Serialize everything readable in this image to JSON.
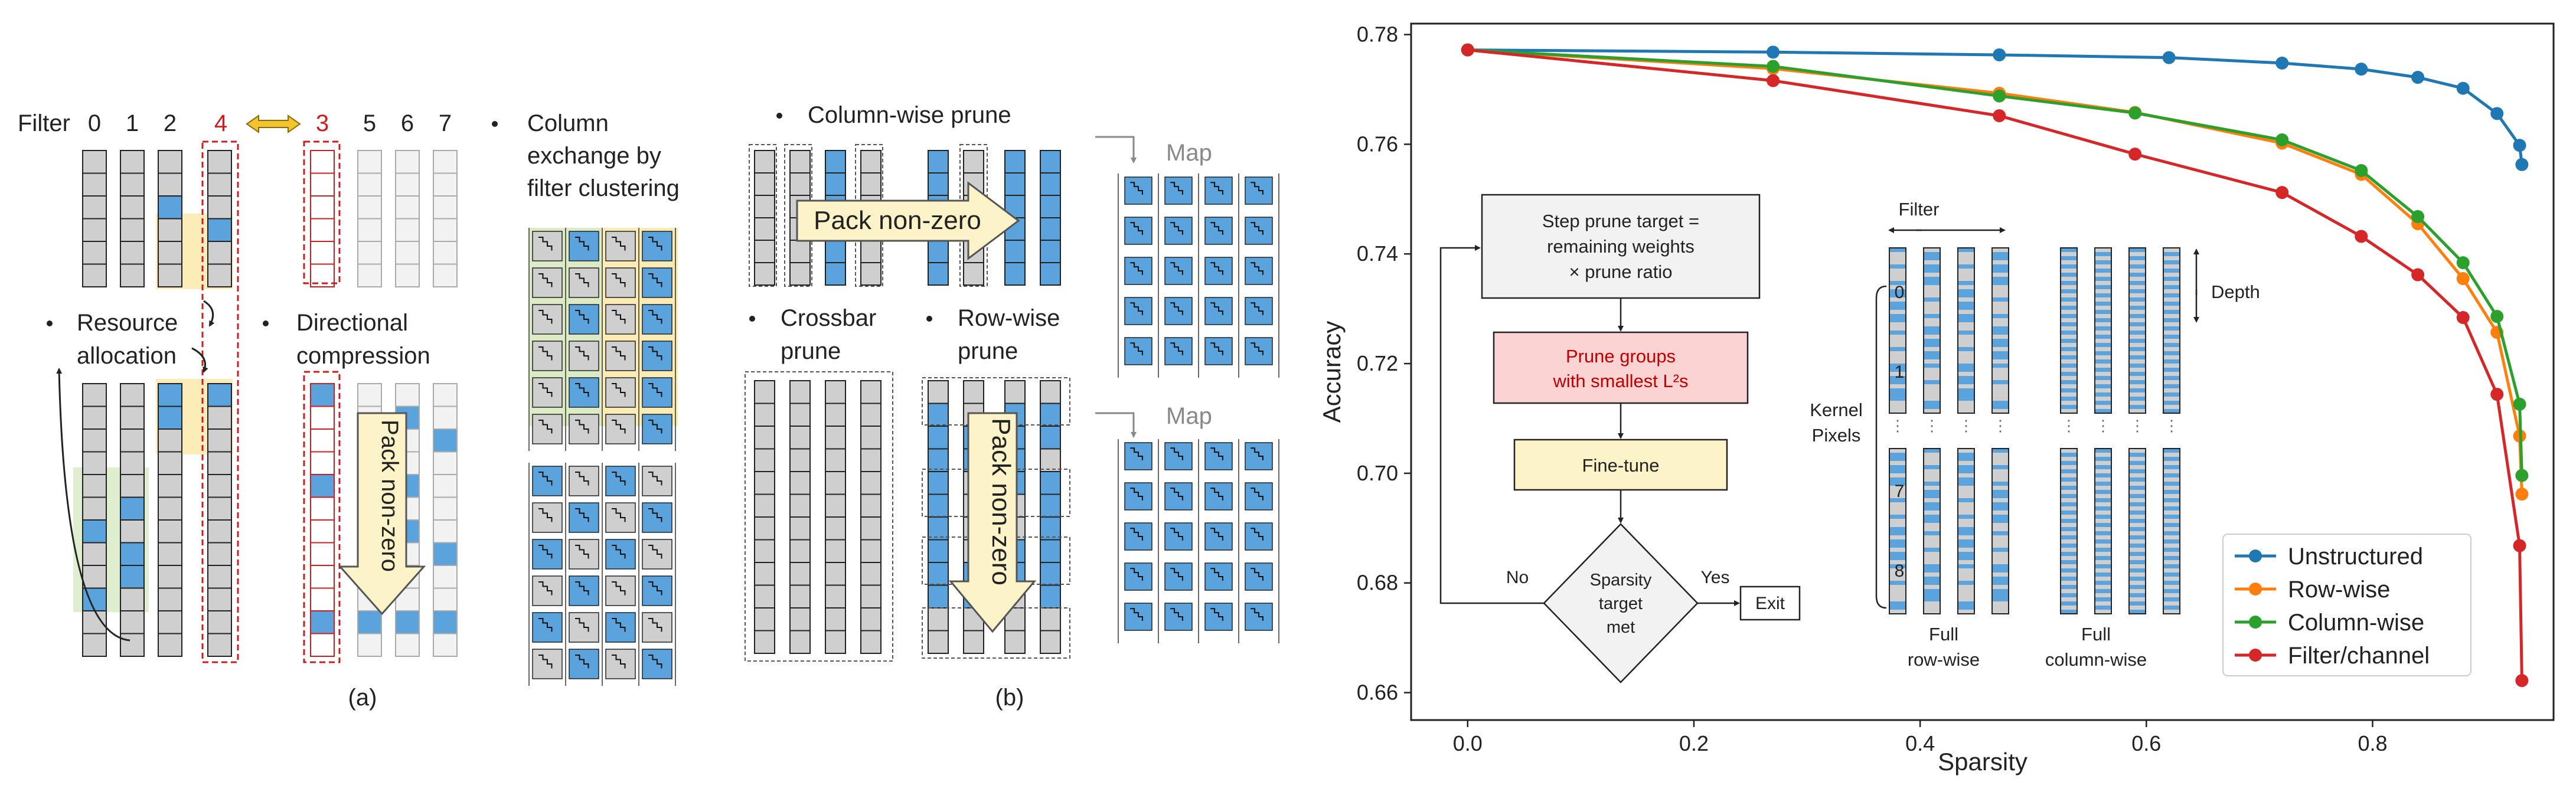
{
  "colors": {
    "blue_cell": "#5aa3dc",
    "gray_cell": "#cfcfcf",
    "faded_cell": "#f2f2f2",
    "red_highlight": "#cc1e1e",
    "yellow_shade": "#fbe7a6",
    "green_shade": "#d9ebc6",
    "pack_arrow_fill": "#fdf3c8",
    "unstructured": "#1f77b4",
    "row_wise": "#ff7f0e",
    "column_wise": "#2ca02c",
    "filter_channel": "#d62728",
    "prune_box": "#fcd3d3",
    "finetune_box": "#fdf3c8",
    "step_box": "#f2f2f2"
  },
  "panel_a": {
    "filter_label": "Filter",
    "filter_indices": [
      "0",
      "1",
      "2",
      "4",
      "3",
      "5",
      "6",
      "7"
    ],
    "resource_allocation": [
      "Resource",
      "allocation"
    ],
    "directional_compression": [
      "Directional",
      "compression"
    ],
    "pack_nonzero": "Pack non-zero",
    "column_exchange": [
      "Column",
      "exchange by",
      "filter clustering"
    ],
    "caption": "(a)"
  },
  "panel_b": {
    "column_wise_prune": "Column-wise prune",
    "pack_nonzero_h": "Pack non-zero",
    "map_top": "Map",
    "crossbar_prune": [
      "Crossbar",
      "prune"
    ],
    "row_wise_prune": [
      "Row-wise",
      "prune"
    ],
    "pack_nonzero_v": "Pack non-zero",
    "map_bottom": "Map",
    "caption": "(b)"
  },
  "flowchart": {
    "step_prune": [
      "Step prune target =",
      "remaining weights",
      "× prune ratio"
    ],
    "prune_groups": [
      "Prune groups",
      "with smallest L²s"
    ],
    "finetune": "Fine-tune",
    "decision": [
      "Sparsity",
      "target",
      "met"
    ],
    "no_label": "No",
    "yes_label": "Yes",
    "exit": "Exit"
  },
  "kernel_inset": {
    "filter_label": "Filter",
    "depth_label": "Depth",
    "kernel_pixels": [
      "Kernel",
      "Pixels"
    ],
    "pixel_indices": [
      "0",
      "1",
      "7",
      "8"
    ],
    "full_row_wise": [
      "Full",
      "row-wise"
    ],
    "full_column_wise": [
      "Full",
      "column-wise"
    ]
  },
  "chart_data": {
    "type": "line",
    "xlabel": "Sparsity",
    "ylabel": "Accuracy",
    "xlim": [
      -0.05,
      0.96
    ],
    "ylim": [
      0.655,
      0.782
    ],
    "xticks": [
      0.0,
      0.2,
      0.4,
      0.6,
      0.8
    ],
    "yticks": [
      0.66,
      0.68,
      0.7,
      0.72,
      0.74,
      0.76,
      0.78
    ],
    "legend_position": "bottom-right",
    "series": [
      {
        "name": "Unstructured",
        "color": "#1f77b4",
        "points": [
          [
            0.0,
            0.7772
          ],
          [
            0.27,
            0.7768
          ],
          [
            0.47,
            0.7763
          ],
          [
            0.62,
            0.7758
          ],
          [
            0.72,
            0.7748
          ],
          [
            0.79,
            0.7737
          ],
          [
            0.84,
            0.7722
          ],
          [
            0.88,
            0.7702
          ],
          [
            0.91,
            0.7656
          ],
          [
            0.93,
            0.7598
          ],
          [
            0.932,
            0.7563
          ]
        ]
      },
      {
        "name": "Row-wise",
        "color": "#ff7f0e",
        "points": [
          [
            0.0,
            0.7772
          ],
          [
            0.27,
            0.7738
          ],
          [
            0.47,
            0.7693
          ],
          [
            0.59,
            0.7658
          ],
          [
            0.72,
            0.7602
          ],
          [
            0.79,
            0.7545
          ],
          [
            0.84,
            0.7455
          ],
          [
            0.88,
            0.7355
          ],
          [
            0.91,
            0.7257
          ],
          [
            0.93,
            0.7068
          ],
          [
            0.932,
            0.6962
          ]
        ]
      },
      {
        "name": "Column-wise",
        "color": "#2ca02c",
        "points": [
          [
            0.0,
            0.7772
          ],
          [
            0.27,
            0.7742
          ],
          [
            0.47,
            0.7688
          ],
          [
            0.59,
            0.7657
          ],
          [
            0.72,
            0.7608
          ],
          [
            0.79,
            0.7552
          ],
          [
            0.84,
            0.7468
          ],
          [
            0.88,
            0.7384
          ],
          [
            0.91,
            0.7286
          ],
          [
            0.93,
            0.7126
          ],
          [
            0.932,
            0.6996
          ]
        ]
      },
      {
        "name": "Filter/channel",
        "color": "#d62728",
        "points": [
          [
            0.0,
            0.7772
          ],
          [
            0.27,
            0.7716
          ],
          [
            0.47,
            0.7652
          ],
          [
            0.59,
            0.7582
          ],
          [
            0.72,
            0.7512
          ],
          [
            0.79,
            0.7432
          ],
          [
            0.84,
            0.7362
          ],
          [
            0.88,
            0.7284
          ],
          [
            0.91,
            0.7144
          ],
          [
            0.93,
            0.6868
          ],
          [
            0.932,
            0.6622
          ]
        ]
      }
    ]
  }
}
